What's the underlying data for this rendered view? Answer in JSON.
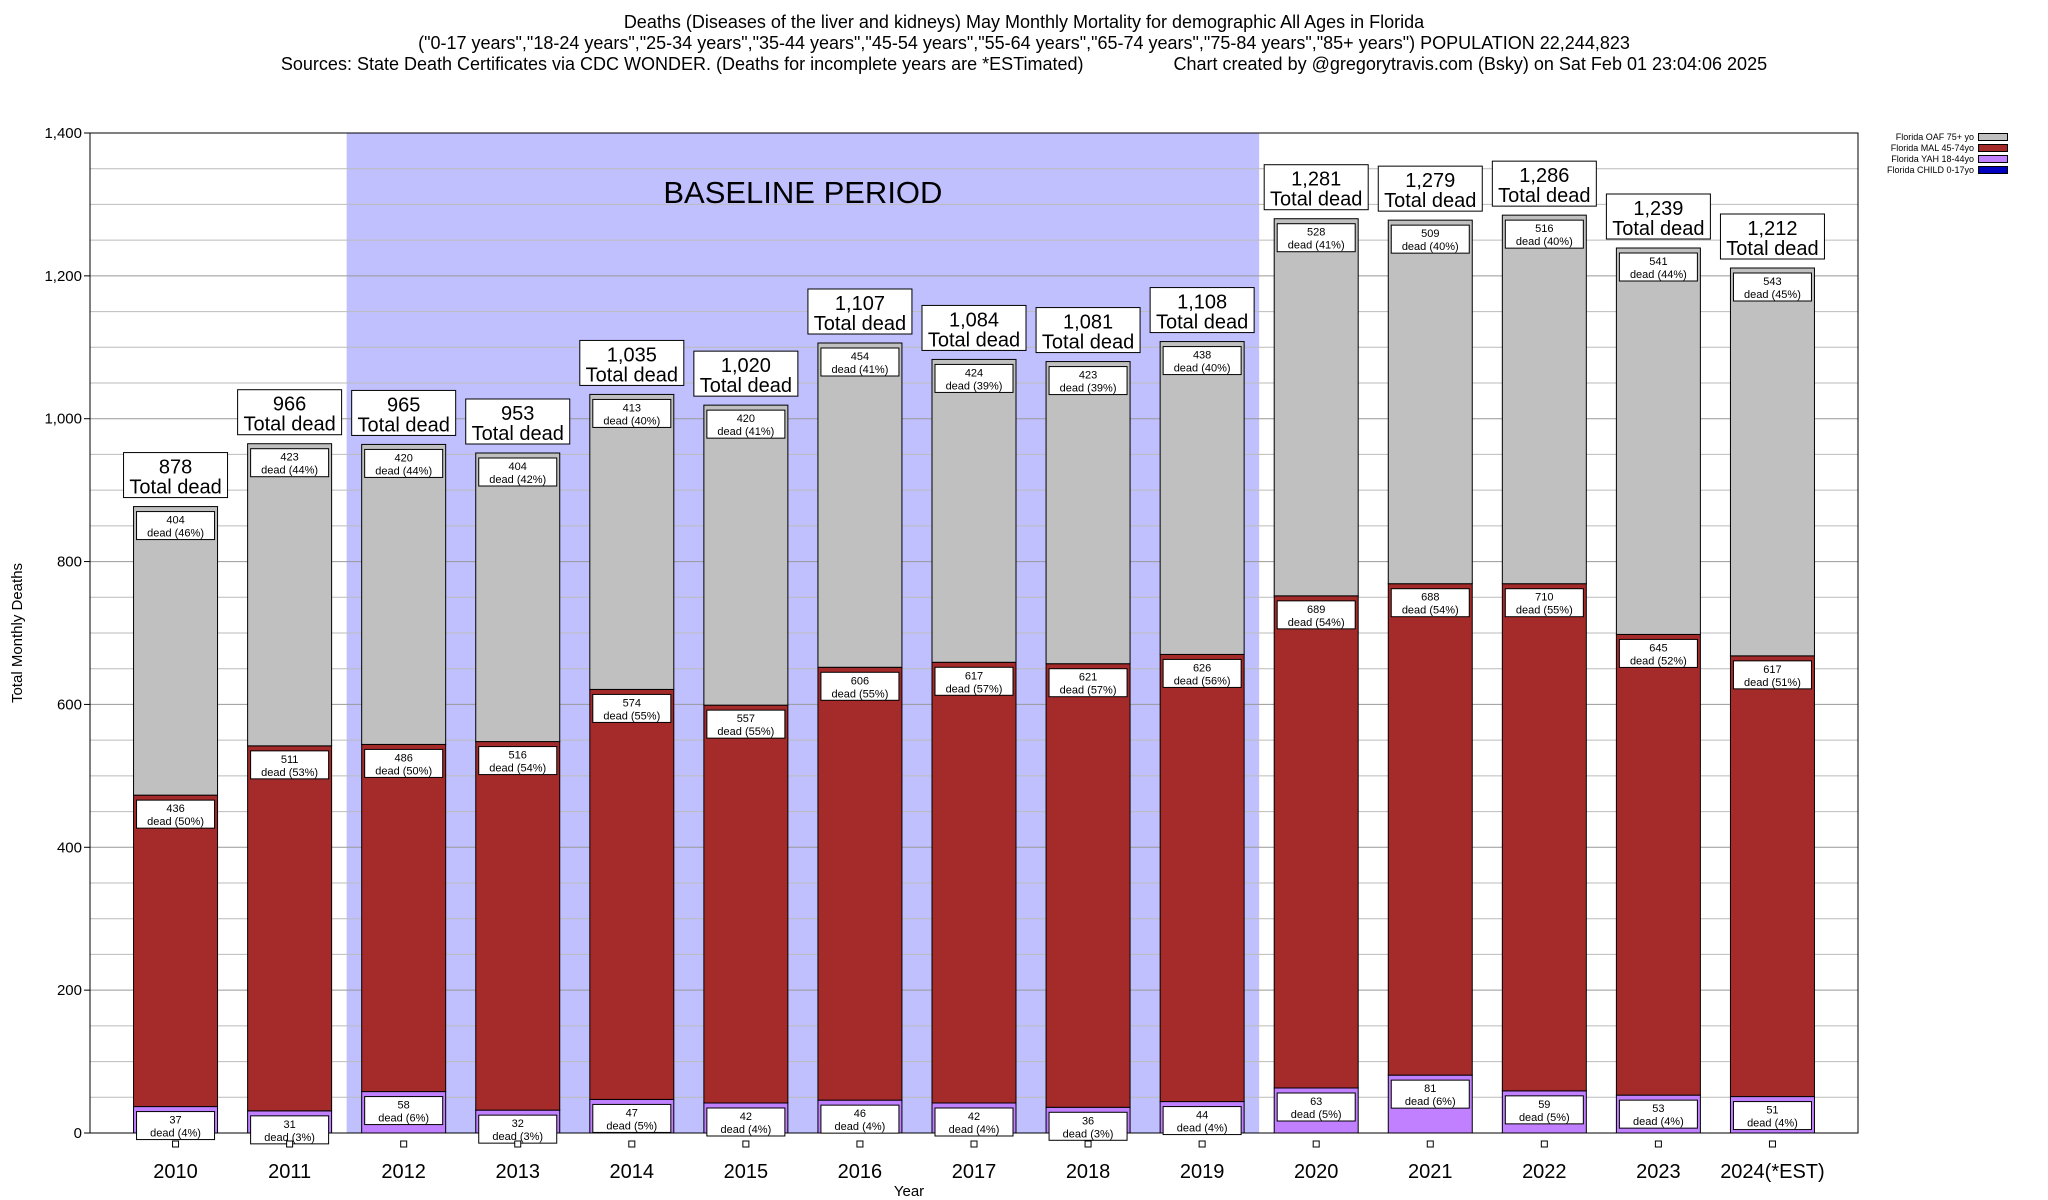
{
  "title_line1": "Deaths (Diseases of the liver and kidneys) May Monthly Mortality for demographic All Ages in Florida",
  "title_line2": "(\"0-17 years\",\"18-24 years\",\"25-34 years\",\"35-44 years\",\"45-54 years\",\"55-64 years\",\"65-74 years\",\"75-84 years\",\"85+ years\") POPULATION 22,244,823",
  "title_line3_left": "Sources: State Death Certificates via CDC WONDER. (Deaths for incomplete years are *ESTimated)",
  "title_line3_right": "Chart created by @gregorytravis.com (Bsky) on Sat Feb 01 23:04:06 2025",
  "chart_data": {
    "type": "bar",
    "stacked": true,
    "xlabel": "Year",
    "ylabel": "Total Monthly Deaths",
    "ylim": [
      0,
      1400
    ],
    "yticks": [
      0,
      200,
      400,
      600,
      800,
      1000,
      1200,
      1400
    ],
    "ytick_labels": [
      "0",
      "200",
      "400",
      "600",
      "800",
      "1,000",
      "1,200",
      "1,400"
    ],
    "grid": true,
    "categories": [
      "2010",
      "2011",
      "2012",
      "2013",
      "2014",
      "2015",
      "2016",
      "2017",
      "2018",
      "2019",
      "2020",
      "2021",
      "2022",
      "2023",
      "2024(*EST)"
    ],
    "baseline_label": "BASELINE PERIOD",
    "baseline_range": [
      "2012",
      "2019"
    ],
    "total_suffix": "Total dead",
    "totals": [
      "878",
      "966",
      "965",
      "953",
      "1,035",
      "1,020",
      "1,107",
      "1,084",
      "1,081",
      "1,108",
      "1,281",
      "1,279",
      "1,286",
      "1,239",
      "1,212"
    ],
    "series": [
      {
        "name": "Florida CHILD 0-17yo",
        "color": "#0000c0",
        "values": [
          0,
          0,
          0,
          0,
          0,
          0,
          0,
          0,
          0,
          0,
          0,
          0,
          0,
          0,
          0
        ]
      },
      {
        "name": "Florida YAH 18-44yo",
        "color": "#c080ff",
        "values": [
          37,
          31,
          58,
          32,
          47,
          42,
          46,
          42,
          36,
          44,
          63,
          81,
          59,
          53,
          51
        ],
        "labels": [
          "37",
          "31",
          "58",
          "32",
          "47",
          "42",
          "46",
          "42",
          "36",
          "44",
          "63",
          "81",
          "59",
          "53",
          "51"
        ],
        "pct": [
          "dead (4%)",
          "dead (3%)",
          "dead (6%)",
          "dead (3%)",
          "dead (5%)",
          "dead (4%)",
          "dead (4%)",
          "dead (4%)",
          "dead (3%)",
          "dead (4%)",
          "dead (5%)",
          "dead (6%)",
          "dead (5%)",
          "dead (4%)",
          "dead (4%)"
        ]
      },
      {
        "name": "Florida MAL 45-74yo",
        "color": "#a52a2a",
        "values": [
          436,
          511,
          486,
          516,
          574,
          557,
          606,
          617,
          621,
          626,
          689,
          688,
          710,
          645,
          617
        ],
        "labels": [
          "436",
          "511",
          "486",
          "516",
          "574",
          "557",
          "606",
          "617",
          "621",
          "626",
          "689",
          "688",
          "710",
          "645",
          "617"
        ],
        "pct": [
          "dead (50%)",
          "dead (53%)",
          "dead (50%)",
          "dead (54%)",
          "dead (55%)",
          "dead (55%)",
          "dead (55%)",
          "dead (57%)",
          "dead (57%)",
          "dead (56%)",
          "dead (54%)",
          "dead (54%)",
          "dead (55%)",
          "dead (52%)",
          "dead (51%)"
        ]
      },
      {
        "name": "Florida OAF 75+ yo",
        "color": "#c0c0c0",
        "values": [
          404,
          423,
          420,
          404,
          413,
          420,
          454,
          424,
          423,
          438,
          528,
          509,
          516,
          541,
          543
        ],
        "labels": [
          "404",
          "423",
          "420",
          "404",
          "413",
          "420",
          "454",
          "424",
          "423",
          "438",
          "528",
          "509",
          "516",
          "541",
          "543"
        ],
        "pct": [
          "dead (46%)",
          "dead (44%)",
          "dead (44%)",
          "dead (42%)",
          "dead (40%)",
          "dead (41%)",
          "dead (41%)",
          "dead (39%)",
          "dead (39%)",
          "dead (40%)",
          "dead (41%)",
          "dead (40%)",
          "dead (40%)",
          "dead (44%)",
          "dead (45%)"
        ]
      }
    ],
    "legend_position": "top-right",
    "legend_order": [
      "Florida OAF 75+ yo",
      "Florida MAL 45-74yo",
      "Florida YAH 18-44yo",
      "Florida CHILD 0-17yo"
    ]
  }
}
